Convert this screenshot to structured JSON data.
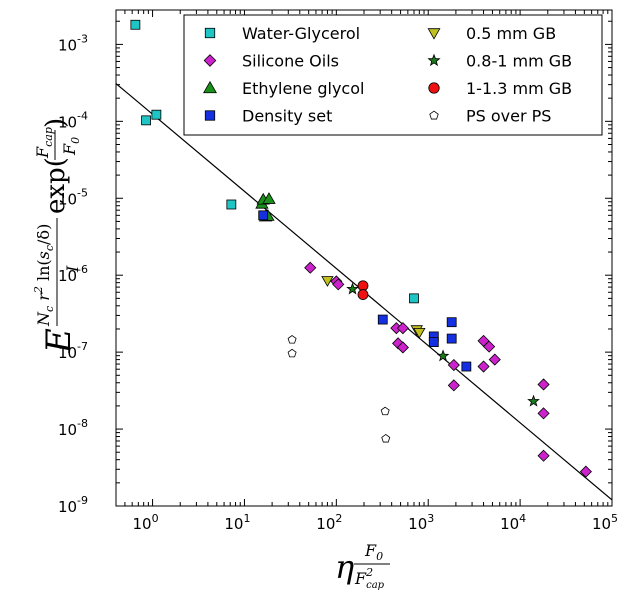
{
  "chart_data": {
    "type": "scatter",
    "x_scale": "log",
    "y_scale": "log",
    "xlim": [
      0.4,
      100000
    ],
    "ylim": [
      1e-09,
      0.0028
    ],
    "legend_position": "top-right",
    "x_ticks": [
      {
        "value": 1,
        "label": "10",
        "exp": "0"
      },
      {
        "value": 10,
        "label": "10",
        "exp": "1"
      },
      {
        "value": 100,
        "label": "10",
        "exp": "2"
      },
      {
        "value": 1000,
        "label": "10",
        "exp": "3"
      },
      {
        "value": 10000,
        "label": "10",
        "exp": "4"
      },
      {
        "value": 100000,
        "label": "10",
        "exp": "5"
      }
    ],
    "y_ticks": [
      {
        "value": 1e-09,
        "label": "10",
        "exp": "-9"
      },
      {
        "value": 1e-08,
        "label": "10",
        "exp": "-8"
      },
      {
        "value": 1e-07,
        "label": "10",
        "exp": "-7"
      },
      {
        "value": 1e-06,
        "label": "10",
        "exp": "-6"
      },
      {
        "value": 1e-05,
        "label": "10",
        "exp": "-5"
      },
      {
        "value": 0.0001,
        "label": "10",
        "exp": "-4"
      },
      {
        "value": 0.001,
        "label": "10",
        "exp": "-3"
      }
    ],
    "fit_line": {
      "x": [
        0.4,
        100000
      ],
      "y": [
        0.00031,
        1.2e-09
      ],
      "color": "#000000"
    },
    "series": [
      {
        "name": "Water-Glycerol",
        "marker": "square",
        "color": "#1fc4c4",
        "points": [
          [
            0.65,
            0.0018
          ],
          [
            0.85,
            0.000103
          ],
          [
            1.1,
            0.000122
          ],
          [
            7.2,
            8.3e-06
          ],
          [
            700,
            5e-07
          ]
        ]
      },
      {
        "name": "Silicone Oils",
        "marker": "diamond",
        "color": "#cc22cc",
        "points": [
          [
            52,
            1.25e-06
          ],
          [
            100,
            8.3e-07
          ],
          [
            105,
            7.6e-07
          ],
          [
            450,
            2.05e-07
          ],
          [
            530,
            2.05e-07
          ],
          [
            470,
            1.3e-07
          ],
          [
            530,
            1.15e-07
          ],
          [
            1900,
            6.8e-08
          ],
          [
            1900,
            3.7e-08
          ],
          [
            4000,
            1.4e-07
          ],
          [
            4600,
            1.18e-07
          ],
          [
            5300,
            8e-08
          ],
          [
            4000,
            6.5e-08
          ],
          [
            18000,
            3.8e-08
          ],
          [
            18000,
            1.6e-08
          ],
          [
            18000,
            4.5e-09
          ],
          [
            52000,
            2.8e-09
          ]
        ]
      },
      {
        "name": "Ethylene glycol",
        "marker": "triangle-up",
        "color": "#1a8f1a",
        "points": [
          [
            15.5,
            8.5e-06
          ],
          [
            16,
            9.6e-06
          ],
          [
            17,
            5.8e-06
          ],
          [
            18,
            5.9e-06
          ],
          [
            18.5,
            9.8e-06
          ]
        ]
      },
      {
        "name": "Density set",
        "marker": "square",
        "color": "#1430e0",
        "points": [
          [
            16,
            6e-06
          ],
          [
            320,
            2.65e-07
          ],
          [
            1150,
            1.6e-07
          ],
          [
            1150,
            1.35e-07
          ],
          [
            1800,
            2.45e-07
          ],
          [
            1800,
            1.5e-07
          ],
          [
            2600,
            6.5e-08
          ]
        ]
      },
      {
        "name": "0.5 mm GB",
        "marker": "triangle-down",
        "color": "#c0c020",
        "points": [
          [
            80,
            8.5e-07
          ],
          [
            750,
            1.95e-07
          ],
          [
            800,
            1.8e-07
          ]
        ]
      },
      {
        "name": "0.8-1 mm GB",
        "marker": "star",
        "color": "#1a7a1a",
        "points": [
          [
            150,
            6.6e-07
          ],
          [
            1450,
            8.9e-08
          ],
          [
            14000,
            2.3e-08
          ]
        ]
      },
      {
        "name": "1-1.3 mm GB",
        "marker": "circle",
        "color": "#ee1111",
        "points": [
          [
            195,
            7.3e-07
          ],
          [
            195,
            5.6e-07
          ]
        ]
      },
      {
        "name": "PS over PS",
        "marker": "pentagon",
        "color": "#ffffff",
        "points": [
          [
            33,
            1.45e-07
          ],
          [
            33,
            9.6e-08
          ],
          [
            340,
            1.7e-08
          ],
          [
            345,
            7.5e-09
          ]
        ]
      }
    ]
  }
}
